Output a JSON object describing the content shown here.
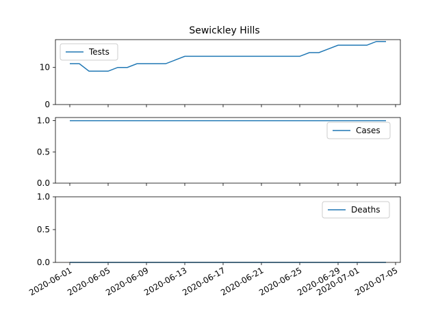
{
  "chart_data": {
    "type": "line",
    "title": "Sewickley Hills",
    "x": [
      "2020-06-01",
      "2020-06-02",
      "2020-06-03",
      "2020-06-04",
      "2020-06-05",
      "2020-06-06",
      "2020-06-07",
      "2020-06-08",
      "2020-06-09",
      "2020-06-10",
      "2020-06-11",
      "2020-06-12",
      "2020-06-13",
      "2020-06-14",
      "2020-06-15",
      "2020-06-16",
      "2020-06-17",
      "2020-06-18",
      "2020-06-19",
      "2020-06-20",
      "2020-06-21",
      "2020-06-22",
      "2020-06-23",
      "2020-06-24",
      "2020-06-25",
      "2020-06-26",
      "2020-06-27",
      "2020-06-28",
      "2020-06-29",
      "2020-06-30",
      "2020-07-01",
      "2020-07-02",
      "2020-07-03",
      "2020-07-04"
    ],
    "x_ticks": [
      "2020-06-01",
      "2020-06-05",
      "2020-06-09",
      "2020-06-13",
      "2020-06-17",
      "2020-06-21",
      "2020-06-25",
      "2020-06-29",
      "2020-07-01",
      "2020-07-05"
    ],
    "line_color": "#1f77b4",
    "panels": [
      {
        "series": [
          {
            "name": "Tests",
            "values": [
              11,
              11,
              9,
              9,
              9,
              10,
              10,
              11,
              11,
              11,
              11,
              12,
              13,
              13,
              13,
              13,
              13,
              13,
              13,
              13,
              13,
              13,
              13,
              13,
              13,
              14,
              14,
              15,
              16,
              16,
              16,
              16,
              17,
              17
            ]
          }
        ],
        "ylim": [
          0,
          17.5
        ],
        "y_ticks": [
          "0",
          "10"
        ],
        "legend": "top-left"
      },
      {
        "series": [
          {
            "name": "Cases",
            "values": [
              1,
              1,
              1,
              1,
              1,
              1,
              1,
              1,
              1,
              1,
              1,
              1,
              1,
              1,
              1,
              1,
              1,
              1,
              1,
              1,
              1,
              1,
              1,
              1,
              1,
              1,
              1,
              1,
              1,
              1,
              1,
              1,
              1,
              1
            ]
          }
        ],
        "ylim": [
          0,
          1.05
        ],
        "y_ticks": [
          "0.0",
          "0.5",
          "1.0"
        ],
        "legend": "top-right"
      },
      {
        "series": [
          {
            "name": "Deaths",
            "values": [
              0,
              0,
              0,
              0,
              0,
              0,
              0,
              0,
              0,
              0,
              0,
              0,
              0,
              0,
              0,
              0,
              0,
              0,
              0,
              0,
              0,
              0,
              0,
              0,
              0,
              0,
              0,
              0,
              0,
              0,
              0,
              0,
              0,
              0
            ]
          }
        ],
        "ylim": [
          0,
          1.0
        ],
        "y_ticks": [
          "0.0",
          "0.5",
          "1.0"
        ],
        "legend": "top-right"
      }
    ]
  }
}
